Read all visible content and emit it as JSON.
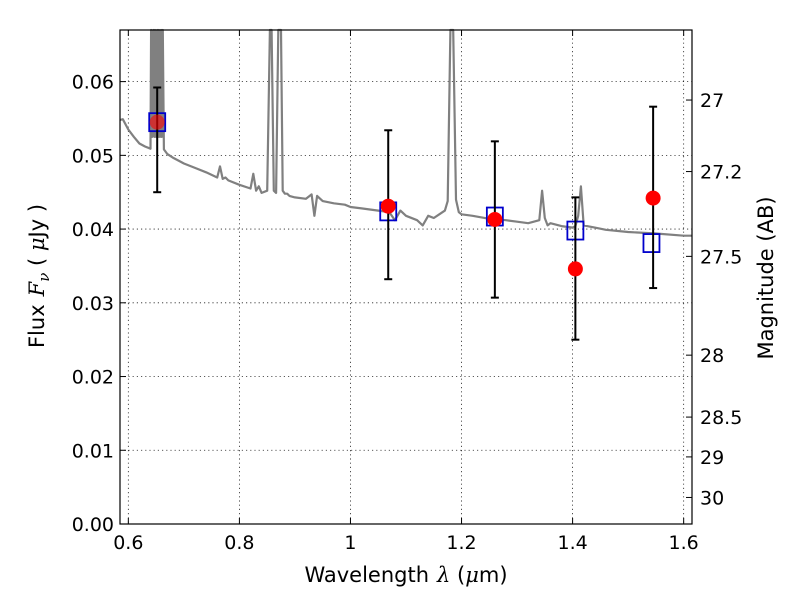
{
  "chart_data": {
    "type": "scatter",
    "xlabel_text": "Wavelength",
    "xlabel_symbol": "λ",
    "xlabel_unit_open": " (",
    "xlabel_unit_mu": "μ",
    "xlabel_unit_rest": "m)",
    "ylabel_text": "Flux",
    "ylabel_symbol_main": "F",
    "ylabel_symbol_sub": "ν",
    "ylabel_unit_open": " ( ",
    "ylabel_unit_mu": "μ",
    "ylabel_unit_rest": "Jy )",
    "y2label": "Magnitude (AB)",
    "xlim": [
      0.585,
      1.615
    ],
    "ylim": [
      0.0,
      0.067
    ],
    "grid": true,
    "x_ticks": [
      0.6,
      0.8,
      1.0,
      1.2,
      1.4,
      1.6
    ],
    "x_tick_labels": [
      "0.6",
      "0.8",
      "1",
      "1.2",
      "1.4",
      "1.6"
    ],
    "y_ticks": [
      0.0,
      0.01,
      0.02,
      0.03,
      0.04,
      0.05,
      0.06
    ],
    "y_tick_labels": [
      "0.00",
      "0.01",
      "0.02",
      "0.03",
      "0.04",
      "0.05",
      "0.06"
    ],
    "y2_ticks": [
      {
        "label": "27",
        "flux": 0.0575
      },
      {
        "label": "27.2",
        "flux": 0.0478
      },
      {
        "label": "27.5",
        "flux": 0.0363
      },
      {
        "label": "28",
        "flux": 0.0229
      },
      {
        "label": "28.5",
        "flux": 0.0145
      },
      {
        "label": "29",
        "flux": 0.0091
      },
      {
        "label": "30",
        "flux": 0.0036
      }
    ],
    "model_spectrum": {
      "color": "#808080",
      "x": [
        0.585,
        0.59,
        0.6,
        0.61,
        0.62,
        0.63,
        0.64,
        0.641,
        0.643,
        0.645,
        0.647,
        0.648,
        0.65,
        0.652,
        0.654,
        0.655,
        0.657,
        0.659,
        0.66,
        0.662,
        0.664,
        0.67,
        0.68,
        0.69,
        0.7,
        0.72,
        0.74,
        0.76,
        0.765,
        0.77,
        0.775,
        0.78,
        0.8,
        0.82,
        0.825,
        0.83,
        0.835,
        0.84,
        0.85,
        0.855,
        0.858,
        0.862,
        0.866,
        0.87,
        0.875,
        0.878,
        0.882,
        0.886,
        0.89,
        0.9,
        0.92,
        0.93,
        0.935,
        0.94,
        0.95,
        0.97,
        0.99,
        1.0,
        1.02,
        1.05,
        1.07,
        1.08,
        1.09,
        1.1,
        1.12,
        1.13,
        1.14,
        1.15,
        1.16,
        1.17,
        1.175,
        1.18,
        1.185,
        1.19,
        1.195,
        1.2,
        1.22,
        1.25,
        1.28,
        1.3,
        1.32,
        1.34,
        1.345,
        1.35,
        1.355,
        1.36,
        1.38,
        1.4,
        1.405,
        1.41,
        1.415,
        1.42,
        1.44,
        1.46,
        1.5,
        1.55,
        1.6,
        1.615
      ],
      "y": [
        0.0548,
        0.0549,
        0.0535,
        0.0525,
        0.0516,
        0.0512,
        0.0509,
        0.068,
        0.0525,
        0.068,
        0.0525,
        0.068,
        0.0525,
        0.068,
        0.0525,
        0.068,
        0.0525,
        0.068,
        0.0525,
        0.068,
        0.0508,
        0.0502,
        0.0497,
        0.0493,
        0.0489,
        0.0483,
        0.0477,
        0.047,
        0.0485,
        0.0468,
        0.047,
        0.0466,
        0.046,
        0.0455,
        0.0475,
        0.0452,
        0.0458,
        0.0449,
        0.0452,
        0.068,
        0.068,
        0.0452,
        0.0449,
        0.068,
        0.068,
        0.0452,
        0.0448,
        0.0448,
        0.0445,
        0.0443,
        0.0441,
        0.0447,
        0.0418,
        0.0445,
        0.0438,
        0.0435,
        0.0433,
        0.043,
        0.0428,
        0.0425,
        0.0423,
        0.0412,
        0.0425,
        0.0418,
        0.0412,
        0.0405,
        0.0418,
        0.0415,
        0.042,
        0.0425,
        0.0438,
        0.068,
        0.068,
        0.044,
        0.0423,
        0.042,
        0.0418,
        0.0414,
        0.0412,
        0.041,
        0.0408,
        0.0412,
        0.0452,
        0.0415,
        0.0405,
        0.0408,
        0.0404,
        0.0402,
        0.0404,
        0.0418,
        0.0458,
        0.0405,
        0.0402,
        0.0399,
        0.0396,
        0.0394,
        0.0391,
        0.0391
      ]
    },
    "series": [
      {
        "marker": "square-open",
        "color": "#0000cc",
        "x": [
          0.652,
          1.068,
          1.26,
          1.405,
          1.542
        ],
        "y": [
          0.0545,
          0.0424,
          0.0417,
          0.0398,
          0.0381
        ]
      },
      {
        "marker": "circle",
        "color": "#ff0000",
        "x": [
          0.652,
          1.068,
          1.26,
          1.405,
          1.545
        ],
        "y": [
          0.0545,
          0.0431,
          0.0413,
          0.0346,
          0.0442
        ],
        "yerr_low": [
          0.045,
          0.0332,
          0.0307,
          0.025,
          0.032
        ],
        "yerr_high": [
          0.0592,
          0.0534,
          0.0519,
          0.0443,
          0.0566
        ]
      }
    ]
  }
}
